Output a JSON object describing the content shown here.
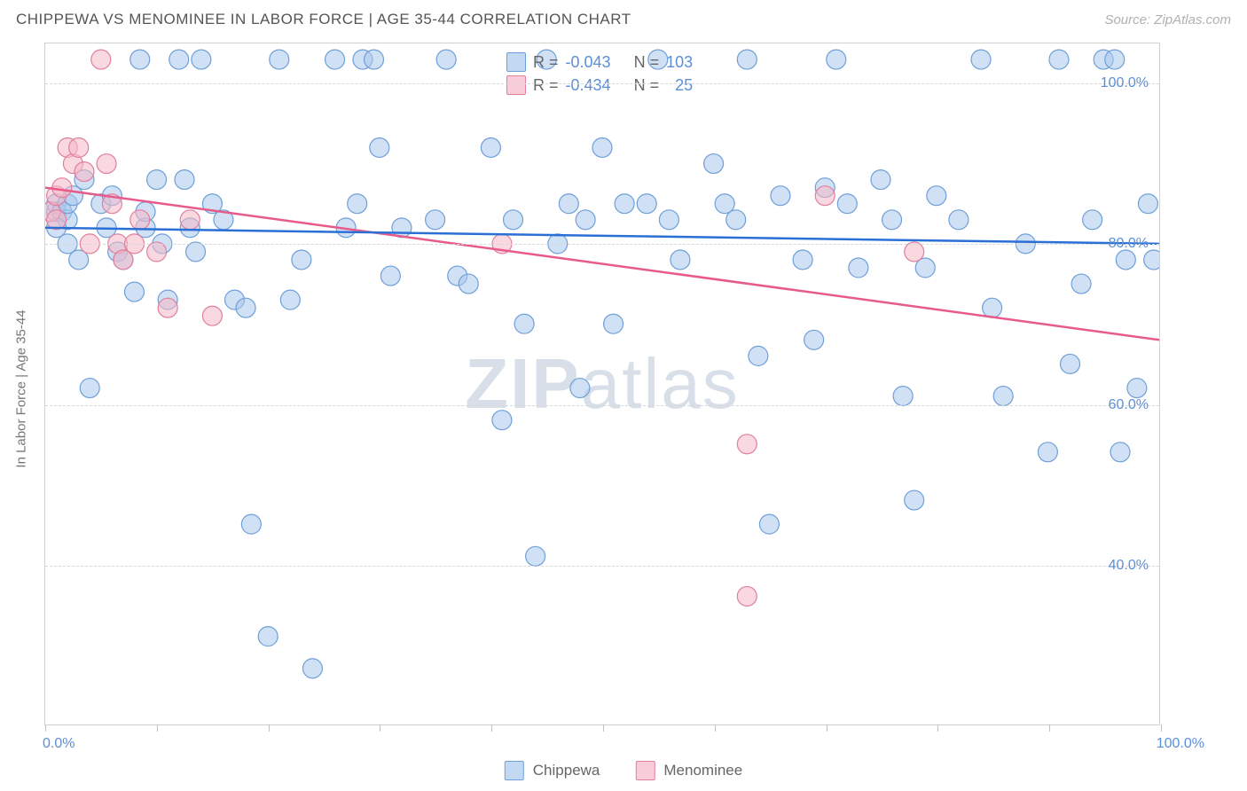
{
  "header": {
    "title": "CHIPPEWA VS MENOMINEE IN LABOR FORCE | AGE 35-44 CORRELATION CHART",
    "source": "Source: ZipAtlas.com"
  },
  "chart": {
    "type": "scatter",
    "ylabel": "In Labor Force | Age 35-44",
    "xlim": [
      0,
      100
    ],
    "ylim": [
      20,
      105
    ],
    "xtick_positions": [
      0,
      10,
      20,
      30,
      40,
      50,
      60,
      70,
      80,
      90,
      100
    ],
    "ytick_positions": [
      40,
      60,
      80,
      100
    ],
    "ytick_labels": [
      "40.0%",
      "60.0%",
      "80.0%",
      "100.0%"
    ],
    "xtick_labels_shown": {
      "0": "0.0%",
      "100": "100.0%"
    },
    "background_color": "#ffffff",
    "grid_color": "#d8d8d8",
    "axis_label_color": "#5b8fd6",
    "marker_radius": 11,
    "series": {
      "chippewa": {
        "label": "Chippewa",
        "color_fill": "#a9c8ec",
        "color_stroke": "#6f9fd8",
        "trend_color": "#2a6fd6",
        "R": "-0.043",
        "N": "103",
        "trend_line": {
          "x1": 0,
          "y1": 82,
          "x2": 100,
          "y2": 80
        },
        "points": [
          [
            1,
            84
          ],
          [
            1,
            85
          ],
          [
            1.5,
            84
          ],
          [
            2,
            83
          ],
          [
            2,
            85
          ],
          [
            2.5,
            86
          ],
          [
            1,
            82
          ],
          [
            2,
            80
          ],
          [
            3,
            78
          ],
          [
            3.5,
            88
          ],
          [
            4,
            62
          ],
          [
            5,
            85
          ],
          [
            5.5,
            82
          ],
          [
            6,
            86
          ],
          [
            6.5,
            79
          ],
          [
            7,
            78
          ],
          [
            8,
            74
          ],
          [
            8.5,
            103
          ],
          [
            9,
            82
          ],
          [
            9,
            84
          ],
          [
            10,
            88
          ],
          [
            10.5,
            80
          ],
          [
            11,
            73
          ],
          [
            12,
            103
          ],
          [
            12.5,
            88
          ],
          [
            13,
            82
          ],
          [
            13.5,
            79
          ],
          [
            14,
            103
          ],
          [
            15,
            85
          ],
          [
            16,
            83
          ],
          [
            17,
            73
          ],
          [
            18,
            72
          ],
          [
            18.5,
            45
          ],
          [
            20,
            31
          ],
          [
            21,
            103
          ],
          [
            22,
            73
          ],
          [
            23,
            78
          ],
          [
            24,
            27
          ],
          [
            26,
            103
          ],
          [
            27,
            82
          ],
          [
            28,
            85
          ],
          [
            28.5,
            103
          ],
          [
            29.5,
            103
          ],
          [
            30,
            92
          ],
          [
            31,
            76
          ],
          [
            32,
            82
          ],
          [
            35,
            83
          ],
          [
            36,
            103
          ],
          [
            37,
            76
          ],
          [
            38,
            75
          ],
          [
            40,
            92
          ],
          [
            41,
            58
          ],
          [
            42,
            83
          ],
          [
            43,
            70
          ],
          [
            44,
            41
          ],
          [
            45,
            103
          ],
          [
            46,
            80
          ],
          [
            47,
            85
          ],
          [
            48,
            62
          ],
          [
            48.5,
            83
          ],
          [
            50,
            92
          ],
          [
            51,
            70
          ],
          [
            52,
            85
          ],
          [
            54,
            85
          ],
          [
            55,
            103
          ],
          [
            56,
            83
          ],
          [
            57,
            78
          ],
          [
            60,
            90
          ],
          [
            61,
            85
          ],
          [
            62,
            83
          ],
          [
            63,
            103
          ],
          [
            64,
            66
          ],
          [
            65,
            45
          ],
          [
            66,
            86
          ],
          [
            68,
            78
          ],
          [
            69,
            68
          ],
          [
            70,
            87
          ],
          [
            71,
            103
          ],
          [
            72,
            85
          ],
          [
            73,
            77
          ],
          [
            75,
            88
          ],
          [
            76,
            83
          ],
          [
            77,
            61
          ],
          [
            78,
            48
          ],
          [
            79,
            77
          ],
          [
            80,
            86
          ],
          [
            82,
            83
          ],
          [
            84,
            103
          ],
          [
            85,
            72
          ],
          [
            86,
            61
          ],
          [
            88,
            80
          ],
          [
            90,
            54
          ],
          [
            91,
            103
          ],
          [
            92,
            65
          ],
          [
            93,
            75
          ],
          [
            94,
            83
          ],
          [
            95,
            103
          ],
          [
            96,
            103
          ],
          [
            97,
            78
          ],
          [
            98,
            62
          ],
          [
            99,
            85
          ],
          [
            99.5,
            78
          ],
          [
            96.5,
            54
          ]
        ]
      },
      "menominee": {
        "label": "Menominee",
        "color_fill": "#f5b8c7",
        "color_stroke": "#e17f9d",
        "trend_color": "#e75a8a",
        "R": "-0.434",
        "N": "25",
        "trend_line": {
          "x1": 0,
          "y1": 87,
          "x2": 100,
          "y2": 68
        },
        "points": [
          [
            0.5,
            84
          ],
          [
            1,
            86
          ],
          [
            1,
            83
          ],
          [
            1.5,
            87
          ],
          [
            2,
            92
          ],
          [
            2.5,
            90
          ],
          [
            3,
            92
          ],
          [
            3.5,
            89
          ],
          [
            4,
            80
          ],
          [
            5,
            103
          ],
          [
            5.5,
            90
          ],
          [
            6,
            85
          ],
          [
            6.5,
            80
          ],
          [
            7,
            78
          ],
          [
            8,
            80
          ],
          [
            8.5,
            83
          ],
          [
            10,
            79
          ],
          [
            11,
            72
          ],
          [
            13,
            83
          ],
          [
            15,
            71
          ],
          [
            41,
            80
          ],
          [
            63,
            55
          ],
          [
            63,
            36
          ],
          [
            70,
            86
          ],
          [
            78,
            79
          ]
        ]
      }
    }
  },
  "watermark": {
    "zip": "ZIP",
    "atlas": "atlas"
  },
  "bottom_legend": {
    "a": "Chippewa",
    "b": "Menominee"
  },
  "legend_r": {
    "r_label": "R =",
    "n_label": "N ="
  }
}
